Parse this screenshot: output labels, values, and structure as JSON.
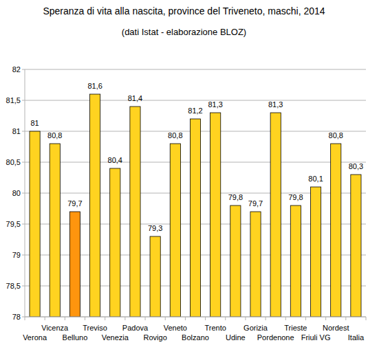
{
  "chart_data": {
    "type": "bar",
    "title": "Speranza di vita alla nascita, province del Triveneto, maschi, 2014",
    "subtitle": "(dati Istat - elaborazione BLOZ)",
    "categories": [
      "Verona",
      "Vicenza",
      "Belluno",
      "Treviso",
      "Venezia",
      "Padova",
      "Rovigo",
      "Veneto",
      "Bolzano",
      "Trento",
      "Udine",
      "Gorizia",
      "Pordenone",
      "Trieste",
      "Friuli VG",
      "Nordest",
      "Italia"
    ],
    "values": [
      81,
      80.8,
      79.7,
      81.6,
      80.4,
      81.4,
      79.3,
      80.8,
      81.2,
      81.3,
      79.8,
      79.7,
      81.3,
      79.8,
      80.1,
      80.8,
      80.3
    ],
    "value_labels": [
      "81",
      "80,8",
      "79,7",
      "81,6",
      "80,4",
      "81,4",
      "79,3",
      "80,8",
      "81,2",
      "81,3",
      "79,8",
      "79,7",
      "81,3",
      "79,8",
      "80,1",
      "80,8",
      "80,3"
    ],
    "colors": [
      "#ffd320",
      "#ffd320",
      "#ff950e",
      "#ffd320",
      "#ffd320",
      "#ffd320",
      "#ffd320",
      "#ffd320",
      "#ffd320",
      "#ffd320",
      "#ffd320",
      "#ffd320",
      "#ffd320",
      "#ffd320",
      "#ffd320",
      "#ffd320",
      "#ffd320"
    ],
    "ylim": [
      78,
      82
    ],
    "yticks": [
      78,
      {
        "value": 78.5,
        "label": "78,5"
      },
      79,
      {
        "value": 79.5,
        "label": "79,5"
      },
      80,
      {
        "value": 80.5,
        "label": "80,5"
      },
      81,
      {
        "value": 81.5,
        "label": "81,5"
      },
      82
    ],
    "grid": true,
    "data_labels": true
  }
}
